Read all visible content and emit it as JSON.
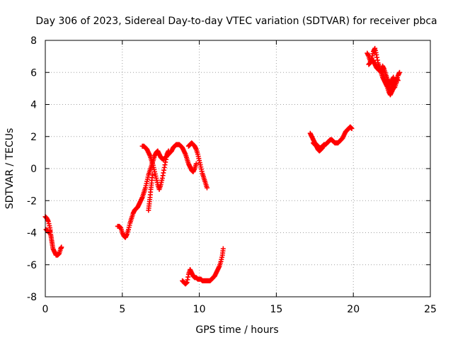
{
  "chart_data": {
    "type": "scatter",
    "title": "Day 306 of 2023, Sidereal Day-to-day VTEC variation (SDTVAR) for receiver pbca",
    "xlabel": "GPS time / hours",
    "ylabel": "SDTVAR / TECUs",
    "xlim": [
      0,
      25
    ],
    "ylim": [
      -8,
      8
    ],
    "xticks": [
      0,
      5,
      10,
      15,
      20,
      25
    ],
    "yticks": [
      -8,
      -6,
      -4,
      -2,
      0,
      2,
      4,
      6,
      8
    ],
    "xtick_labels": [
      "0",
      "5",
      "10",
      "15",
      "20",
      "25"
    ],
    "ytick_labels": [
      "-8",
      "-6",
      "-4",
      "-2",
      "0",
      "2",
      "4",
      "6",
      "8"
    ],
    "grid": true,
    "marker": "plus",
    "color": "#ff0000",
    "series": [
      {
        "segments": [
          [
            [
              0.0,
              -3.0
            ],
            [
              0.1,
              -3.1
            ],
            [
              0.2,
              -3.3
            ],
            [
              0.3,
              -3.7
            ],
            [
              0.35,
              -4.1
            ],
            [
              0.4,
              -4.4
            ],
            [
              0.45,
              -4.7
            ],
            [
              0.5,
              -5.0
            ],
            [
              0.6,
              -5.2
            ],
            [
              0.7,
              -5.4
            ],
            [
              0.8,
              -5.4
            ],
            [
              0.9,
              -5.3
            ],
            [
              1.0,
              -5.0
            ],
            [
              1.05,
              -4.9
            ]
          ],
          [
            [
              0.05,
              -3.8
            ],
            [
              0.15,
              -3.9
            ],
            [
              0.25,
              -4.0
            ],
            [
              0.3,
              -3.9
            ]
          ],
          [
            [
              4.7,
              -3.6
            ],
            [
              4.8,
              -3.6
            ],
            [
              4.9,
              -3.7
            ],
            [
              5.0,
              -4.0
            ],
            [
              5.1,
              -4.2
            ],
            [
              5.2,
              -4.3
            ],
            [
              5.3,
              -4.1
            ],
            [
              5.4,
              -3.8
            ],
            [
              5.5,
              -3.4
            ],
            [
              5.6,
              -3.1
            ],
            [
              5.7,
              -2.8
            ],
            [
              5.8,
              -2.6
            ],
            [
              5.9,
              -2.5
            ],
            [
              6.0,
              -2.4
            ],
            [
              6.1,
              -2.2
            ],
            [
              6.2,
              -2.0
            ],
            [
              6.3,
              -1.8
            ],
            [
              6.4,
              -1.5
            ],
            [
              6.5,
              -1.2
            ],
            [
              6.6,
              -0.8
            ],
            [
              6.7,
              -0.4
            ],
            [
              6.8,
              -0.1
            ],
            [
              6.9,
              0.2
            ],
            [
              7.0,
              0.5
            ],
            [
              7.1,
              0.8
            ],
            [
              7.2,
              1.0
            ],
            [
              7.3,
              1.1
            ],
            [
              7.4,
              0.9
            ],
            [
              7.5,
              0.7
            ],
            [
              7.6,
              0.6
            ],
            [
              7.7,
              0.6
            ],
            [
              7.8,
              0.7
            ],
            [
              7.9,
              0.8
            ],
            [
              8.0,
              0.9
            ],
            [
              8.1,
              1.0
            ],
            [
              8.2,
              1.1
            ],
            [
              8.3,
              1.3
            ],
            [
              8.4,
              1.4
            ],
            [
              8.5,
              1.5
            ],
            [
              8.6,
              1.5
            ],
            [
              8.7,
              1.5
            ],
            [
              8.8,
              1.4
            ],
            [
              8.9,
              1.3
            ],
            [
              9.0,
              1.1
            ],
            [
              9.1,
              0.9
            ],
            [
              9.2,
              0.6
            ],
            [
              9.3,
              0.3
            ],
            [
              9.4,
              0.1
            ],
            [
              9.5,
              -0.1
            ],
            [
              9.6,
              -0.2
            ],
            [
              9.7,
              0.0
            ],
            [
              9.8,
              0.3
            ]
          ],
          [
            [
              6.3,
              1.4
            ],
            [
              6.4,
              1.4
            ],
            [
              6.5,
              1.3
            ],
            [
              6.6,
              1.2
            ],
            [
              6.7,
              1.0
            ],
            [
              6.8,
              0.8
            ],
            [
              6.9,
              0.5
            ],
            [
              7.0,
              0.2
            ],
            [
              7.1,
              -0.2
            ],
            [
              7.2,
              -0.6
            ],
            [
              7.3,
              -1.0
            ],
            [
              7.4,
              -1.3
            ],
            [
              7.5,
              -1.0
            ],
            [
              7.6,
              -0.6
            ],
            [
              7.7,
              -0.1
            ],
            [
              7.8,
              0.4
            ],
            [
              7.9,
              0.9
            ],
            [
              8.0,
              1.1
            ]
          ],
          [
            [
              6.7,
              -2.6
            ],
            [
              6.75,
              -2.2
            ],
            [
              6.8,
              -1.8
            ],
            [
              6.85,
              -1.3
            ],
            [
              6.9,
              -0.9
            ],
            [
              6.95,
              -0.4
            ]
          ],
          [
            [
              9.3,
              1.4
            ],
            [
              9.4,
              1.5
            ],
            [
              9.5,
              1.6
            ],
            [
              9.6,
              1.5
            ],
            [
              9.7,
              1.4
            ],
            [
              9.8,
              1.2
            ],
            [
              9.9,
              0.9
            ],
            [
              10.0,
              0.5
            ],
            [
              10.1,
              0.1
            ],
            [
              10.2,
              -0.3
            ],
            [
              10.3,
              -0.6
            ],
            [
              10.4,
              -0.9
            ],
            [
              10.5,
              -1.2
            ]
          ],
          [
            [
              8.9,
              -7.0
            ],
            [
              9.0,
              -7.1
            ],
            [
              9.1,
              -7.2
            ],
            [
              9.2,
              -7.1
            ],
            [
              9.3,
              -6.6
            ],
            [
              9.4,
              -6.3
            ],
            [
              9.5,
              -6.5
            ],
            [
              9.6,
              -6.7
            ],
            [
              9.7,
              -6.8
            ],
            [
              9.8,
              -6.8
            ],
            [
              9.9,
              -6.9
            ],
            [
              10.0,
              -6.9
            ],
            [
              10.1,
              -6.9
            ],
            [
              10.2,
              -7.0
            ],
            [
              10.3,
              -7.0
            ],
            [
              10.4,
              -7.0
            ],
            [
              10.5,
              -7.0
            ],
            [
              10.6,
              -7.0
            ],
            [
              10.7,
              -7.0
            ],
            [
              10.8,
              -6.9
            ],
            [
              10.9,
              -6.8
            ],
            [
              11.0,
              -6.7
            ],
            [
              11.1,
              -6.5
            ],
            [
              11.2,
              -6.3
            ],
            [
              11.3,
              -6.1
            ],
            [
              11.4,
              -5.8
            ],
            [
              11.5,
              -5.4
            ],
            [
              11.55,
              -5.0
            ]
          ],
          [
            [
              17.2,
              2.2
            ],
            [
              17.3,
              2.0
            ],
            [
              17.4,
              1.8
            ],
            [
              17.5,
              1.6
            ],
            [
              17.6,
              1.5
            ],
            [
              17.7,
              1.4
            ],
            [
              17.8,
              1.3
            ],
            [
              17.9,
              1.3
            ],
            [
              18.0,
              1.4
            ],
            [
              18.1,
              1.5
            ],
            [
              18.2,
              1.5
            ],
            [
              18.3,
              1.6
            ],
            [
              18.4,
              1.7
            ],
            [
              18.5,
              1.8
            ],
            [
              18.6,
              1.8
            ],
            [
              18.7,
              1.7
            ],
            [
              18.8,
              1.6
            ],
            [
              18.9,
              1.6
            ],
            [
              19.0,
              1.6
            ],
            [
              19.1,
              1.7
            ],
            [
              19.2,
              1.8
            ],
            [
              19.3,
              1.9
            ],
            [
              19.4,
              2.1
            ],
            [
              19.5,
              2.3
            ],
            [
              19.6,
              2.4
            ],
            [
              19.7,
              2.5
            ],
            [
              19.8,
              2.6
            ],
            [
              19.9,
              2.5
            ]
          ],
          [
            [
              17.4,
              1.6
            ],
            [
              17.5,
              1.5
            ],
            [
              17.6,
              1.4
            ],
            [
              17.7,
              1.2
            ],
            [
              17.8,
              1.1
            ],
            [
              17.9,
              1.2
            ],
            [
              18.0,
              1.3
            ]
          ],
          [
            [
              20.9,
              7.2
            ],
            [
              21.0,
              7.0
            ],
            [
              21.1,
              6.7
            ],
            [
              21.2,
              6.9
            ],
            [
              21.3,
              7.3
            ],
            [
              21.4,
              7.5
            ],
            [
              21.5,
              7.1
            ],
            [
              21.6,
              6.6
            ],
            [
              21.7,
              6.3
            ],
            [
              21.8,
              6.0
            ],
            [
              21.9,
              5.7
            ],
            [
              22.0,
              5.5
            ],
            [
              22.1,
              5.3
            ],
            [
              22.2,
              5.1
            ],
            [
              22.3,
              4.8
            ],
            [
              22.4,
              4.6
            ],
            [
              22.5,
              4.8
            ],
            [
              22.6,
              5.0
            ],
            [
              22.7,
              5.1
            ],
            [
              22.8,
              5.4
            ],
            [
              22.9,
              5.8
            ],
            [
              23.0,
              6.0
            ]
          ],
          [
            [
              21.0,
              6.5
            ],
            [
              21.1,
              6.6
            ],
            [
              21.2,
              6.8
            ],
            [
              21.3,
              6.7
            ],
            [
              21.4,
              6.5
            ],
            [
              21.5,
              6.3
            ],
            [
              21.6,
              6.2
            ],
            [
              21.7,
              6.1
            ],
            [
              21.8,
              6.2
            ],
            [
              21.9,
              6.0
            ],
            [
              22.0,
              5.7
            ],
            [
              22.1,
              5.4
            ],
            [
              22.2,
              5.2
            ],
            [
              22.3,
              5.0
            ],
            [
              22.4,
              4.9
            ],
            [
              22.5,
              5.1
            ],
            [
              22.6,
              5.3
            ],
            [
              22.7,
              5.5
            ],
            [
              22.8,
              5.6
            ],
            [
              22.9,
              5.5
            ]
          ],
          [
            [
              21.9,
              6.4
            ],
            [
              22.0,
              6.2
            ],
            [
              22.1,
              5.9
            ],
            [
              22.2,
              5.6
            ],
            [
              22.3,
              5.4
            ],
            [
              22.4,
              5.3
            ],
            [
              22.5,
              5.5
            ],
            [
              22.6,
              5.7
            ]
          ]
        ]
      }
    ]
  }
}
